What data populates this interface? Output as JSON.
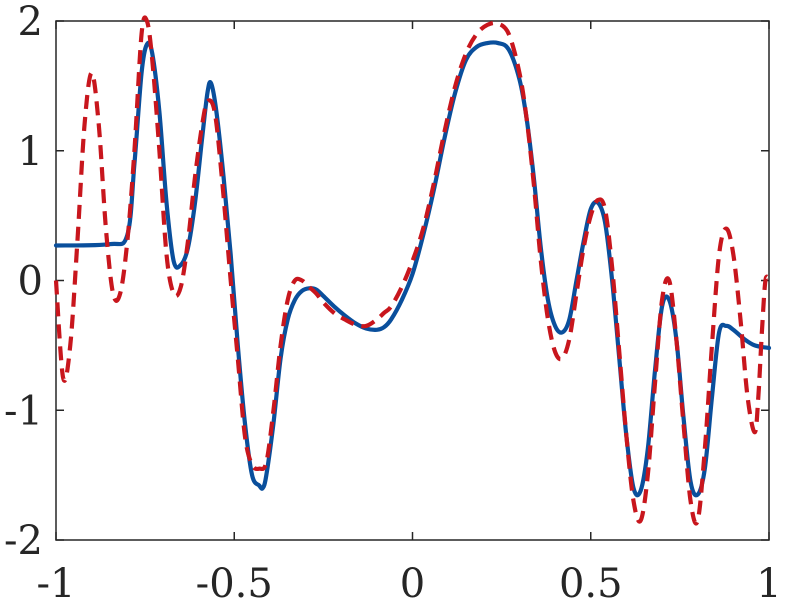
{
  "chart_data": {
    "type": "line",
    "title": "",
    "xlabel": "",
    "ylabel": "",
    "xlim": [
      -1,
      1
    ],
    "ylim": [
      -2,
      2
    ],
    "grid": false,
    "x_ticks": [
      -1,
      -0.5,
      0,
      0.5,
      1
    ],
    "x_tick_labels": [
      "-1",
      "-0.5",
      "0",
      "0.5",
      "1"
    ],
    "y_ticks": [
      -2,
      -1,
      0,
      1,
      2
    ],
    "y_tick_labels": [
      "-2",
      "-1",
      "0",
      "1",
      "2"
    ],
    "series": [
      {
        "style": "solid",
        "color": "#0a4f9c",
        "x": [
          -1,
          -0.85,
          -0.8,
          -0.78,
          -0.76,
          -0.745,
          -0.73,
          -0.71,
          -0.69,
          -0.67,
          -0.65,
          -0.63,
          -0.61,
          -0.59,
          -0.575,
          -0.565,
          -0.55,
          -0.53,
          -0.51,
          -0.49,
          -0.47,
          -0.45,
          -0.43,
          -0.42,
          -0.41,
          -0.39,
          -0.37,
          -0.35,
          -0.33,
          -0.31,
          -0.29,
          -0.27,
          -0.25,
          -0.22,
          -0.19,
          -0.16,
          -0.13,
          -0.1,
          -0.08,
          -0.06,
          -0.03,
          0,
          0.03,
          0.06,
          0.09,
          0.12,
          0.15,
          0.18,
          0.21,
          0.24,
          0.27,
          0.3,
          0.32,
          0.34,
          0.36,
          0.38,
          0.4,
          0.42,
          0.44,
          0.46,
          0.48,
          0.5,
          0.52,
          0.54,
          0.56,
          0.58,
          0.6,
          0.62,
          0.64,
          0.66,
          0.68,
          0.7,
          0.72,
          0.74,
          0.76,
          0.78,
          0.8,
          0.82,
          0.84,
          0.86,
          0.88,
          0.9,
          0.93,
          0.96,
          1
        ],
        "y": [
          0.27,
          0.28,
          0.35,
          0.9,
          1.6,
          1.82,
          1.75,
          1.3,
          0.6,
          0.15,
          0.12,
          0.25,
          0.6,
          1.1,
          1.45,
          1.52,
          1.3,
          0.8,
          0.2,
          -0.5,
          -1.1,
          -1.5,
          -1.58,
          -1.6,
          -1.5,
          -1.1,
          -0.6,
          -0.3,
          -0.15,
          -0.08,
          -0.06,
          -0.07,
          -0.12,
          -0.2,
          -0.27,
          -0.33,
          -0.37,
          -0.38,
          -0.36,
          -0.3,
          -0.15,
          0.05,
          0.35,
          0.7,
          1.1,
          1.45,
          1.7,
          1.8,
          1.83,
          1.83,
          1.78,
          1.55,
          1.25,
          0.8,
          0.25,
          -0.15,
          -0.35,
          -0.4,
          -0.3,
          0.0,
          0.3,
          0.55,
          0.6,
          0.45,
          0.0,
          -0.6,
          -1.2,
          -1.6,
          -1.62,
          -1.3,
          -0.7,
          -0.2,
          -0.15,
          -0.45,
          -1.05,
          -1.55,
          -1.65,
          -1.45,
          -0.9,
          -0.4,
          -0.35,
          -0.38,
          -0.45,
          -0.5,
          -0.52
        ]
      },
      {
        "style": "dashed",
        "color": "#c8161d",
        "x": [
          -1,
          -0.98,
          -0.96,
          -0.94,
          -0.92,
          -0.9,
          -0.88,
          -0.86,
          -0.84,
          -0.82,
          -0.8,
          -0.78,
          -0.76,
          -0.745,
          -0.73,
          -0.71,
          -0.69,
          -0.67,
          -0.65,
          -0.63,
          -0.61,
          -0.59,
          -0.575,
          -0.555,
          -0.535,
          -0.51,
          -0.49,
          -0.47,
          -0.45,
          -0.43,
          -0.41,
          -0.39,
          -0.37,
          -0.35,
          -0.33,
          -0.31,
          -0.29,
          -0.27,
          -0.25,
          -0.22,
          -0.19,
          -0.16,
          -0.13,
          -0.1,
          -0.08,
          -0.06,
          -0.03,
          0,
          0.03,
          0.06,
          0.09,
          0.12,
          0.15,
          0.18,
          0.21,
          0.24,
          0.27,
          0.3,
          0.32,
          0.34,
          0.36,
          0.38,
          0.4,
          0.42,
          0.44,
          0.46,
          0.48,
          0.5,
          0.52,
          0.54,
          0.56,
          0.58,
          0.6,
          0.62,
          0.64,
          0.66,
          0.68,
          0.7,
          0.72,
          0.74,
          0.76,
          0.78,
          0.8,
          0.82,
          0.84,
          0.86,
          0.88,
          0.9,
          0.92,
          0.94,
          0.96,
          0.97,
          0.98,
          0.99,
          1
        ],
        "y": [
          0.0,
          -0.75,
          -0.5,
          0.3,
          1.2,
          1.6,
          1.2,
          0.4,
          -0.1,
          -0.1,
          0.3,
          1.0,
          1.9,
          2.0,
          1.7,
          1.0,
          0.2,
          -0.1,
          -0.05,
          0.3,
          0.8,
          1.2,
          1.38,
          1.3,
          0.8,
          0.0,
          -0.6,
          -1.2,
          -1.42,
          -1.45,
          -1.4,
          -1.0,
          -0.5,
          -0.15,
          0.0,
          0.0,
          -0.05,
          -0.1,
          -0.17,
          -0.25,
          -0.3,
          -0.34,
          -0.35,
          -0.3,
          -0.25,
          -0.2,
          -0.05,
          0.15,
          0.4,
          0.75,
          1.15,
          1.5,
          1.75,
          1.9,
          1.97,
          1.98,
          1.9,
          1.6,
          1.25,
          0.75,
          0.15,
          -0.3,
          -0.55,
          -0.6,
          -0.45,
          -0.1,
          0.25,
          0.5,
          0.62,
          0.55,
          0.1,
          -0.55,
          -1.2,
          -1.7,
          -1.85,
          -1.5,
          -0.8,
          -0.15,
          0.0,
          -0.45,
          -1.1,
          -1.7,
          -1.85,
          -1.3,
          -0.5,
          0.2,
          0.4,
          0.2,
          -0.3,
          -0.9,
          -1.17,
          -0.9,
          -0.4,
          0.0,
          0.0
        ]
      }
    ]
  }
}
